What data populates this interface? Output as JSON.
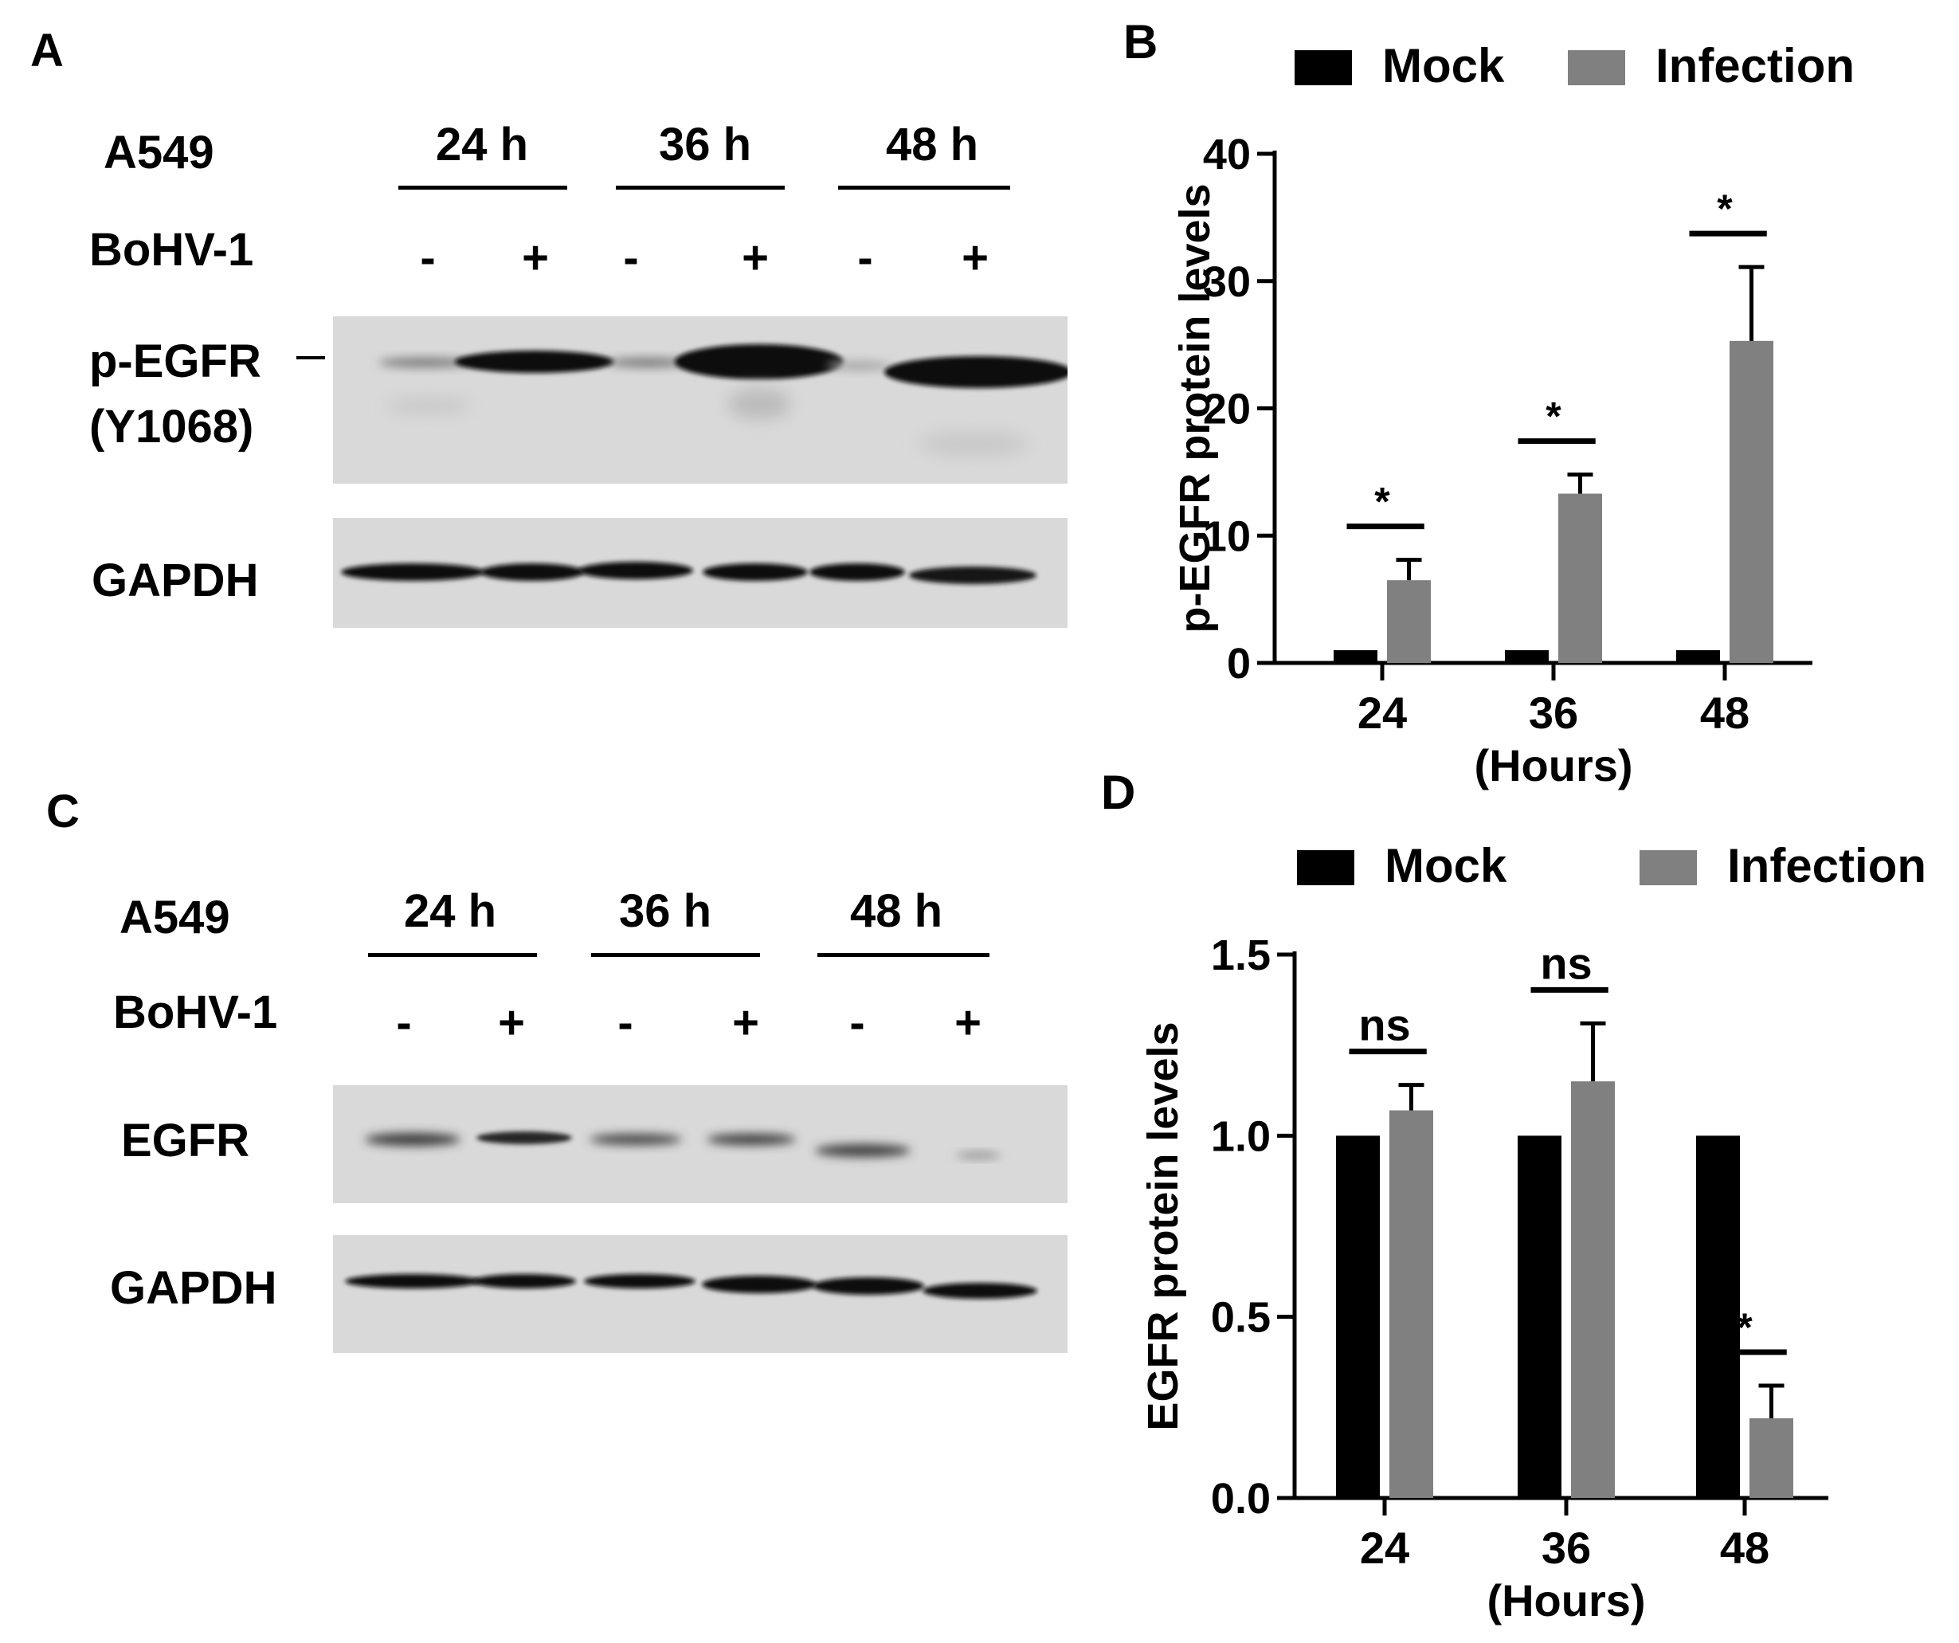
{
  "panels": [
    "A",
    "B",
    "C",
    "D"
  ],
  "blot_a": {
    "cell_line": "A549",
    "timepoints": [
      "24 h",
      "36 h",
      "48 h"
    ],
    "treatment_label": "BoHV-1",
    "signs": [
      "-",
      "+",
      "-",
      "+",
      "-",
      "+"
    ],
    "band_labels": [
      "p-EGFR",
      "(Y1068)",
      "GAPDH"
    ]
  },
  "blot_c": {
    "cell_line": "A549",
    "timepoints": [
      "24 h",
      "36 h",
      "48 h"
    ],
    "treatment_label": "BoHV-1",
    "signs": [
      "-",
      "+",
      "-",
      "+",
      "-",
      "+"
    ],
    "band_labels": [
      "EGFR",
      "GAPDH"
    ]
  },
  "chart_data": [
    {
      "type": "bar",
      "panel": "B",
      "categories": [
        "24",
        "36",
        "48"
      ],
      "xlabel": "(Hours)",
      "ylabel": "p-EGFR protein levels",
      "ylim": [
        0,
        40
      ],
      "yticks": [
        "0",
        "10",
        "20",
        "30",
        "40"
      ],
      "legend_position": "top",
      "series": [
        {
          "name": "Mock",
          "color": "#000000",
          "values": [
            1,
            1,
            1
          ],
          "errors": [
            0,
            0,
            0
          ]
        },
        {
          "name": "Infection",
          "color": "#808080",
          "values": [
            6.5,
            13.3,
            25.3
          ],
          "errors": [
            1.6,
            1.5,
            5.8
          ]
        }
      ],
      "significance": [
        "*",
        "*",
        "*"
      ]
    },
    {
      "type": "bar",
      "panel": "D",
      "categories": [
        "24",
        "36",
        "48"
      ],
      "xlabel": "(Hours)",
      "ylabel": "EGFR protein levels",
      "ylim": [
        0,
        1.5
      ],
      "yticks": [
        "0.0",
        "0.5",
        "1.0",
        "1.5"
      ],
      "legend_position": "top",
      "series": [
        {
          "name": "Mock",
          "color": "#000000",
          "values": [
            1.0,
            1.0,
            1.0
          ],
          "errors": [
            0,
            0,
            0
          ]
        },
        {
          "name": "Infection",
          "color": "#808080",
          "values": [
            1.07,
            1.15,
            0.22
          ],
          "errors": [
            0.07,
            0.16,
            0.09
          ]
        }
      ],
      "significance": [
        "ns",
        "ns",
        "*"
      ]
    }
  ]
}
